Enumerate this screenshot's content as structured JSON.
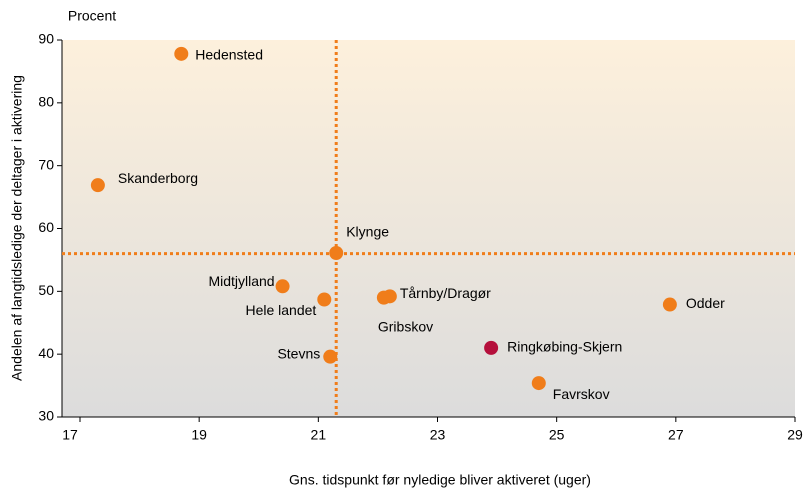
{
  "chart_data": {
    "type": "scatter",
    "y_unit_label": "Procent",
    "xlabel": "Gns. tidspunkt før nyledige bliver aktiveret (uger)",
    "ylabel": "Andelen af langtidsledige der deltager i aktivering",
    "labels": [
      "Hedensted",
      "Skanderborg",
      "Klynge",
      "Midtjylland",
      "Hele landet",
      "Tårnby/Dragør",
      "Gribskov",
      "Odder",
      "Ringkøbing-Skjern",
      "Favrskov",
      "Stevns"
    ],
    "x": [
      18.7,
      17.3,
      21.3,
      20.4,
      21.1,
      22.2,
      22.1,
      26.9,
      23.9,
      24.7,
      21.2
    ],
    "values": [
      87.8,
      66.9,
      56.1,
      50.8,
      48.7,
      49.2,
      49.0,
      47.9,
      41.0,
      35.4,
      39.6
    ],
    "colors": [
      "#f07d1a",
      "#f07d1a",
      "#f07d1a",
      "#f07d1a",
      "#f07d1a",
      "#f07d1a",
      "#f07d1a",
      "#f07d1a",
      "#b5103c",
      "#f07d1a",
      "#f07d1a"
    ],
    "reference_lines": {
      "x": 21.3,
      "y": 56,
      "color": "#f07d1a"
    },
    "xlim": [
      17,
      29
    ],
    "xticks": [
      17,
      19,
      21,
      23,
      25,
      27,
      29
    ],
    "ylim": [
      30,
      90
    ],
    "yticks": [
      30,
      40,
      50,
      60,
      70,
      80,
      90
    ]
  }
}
